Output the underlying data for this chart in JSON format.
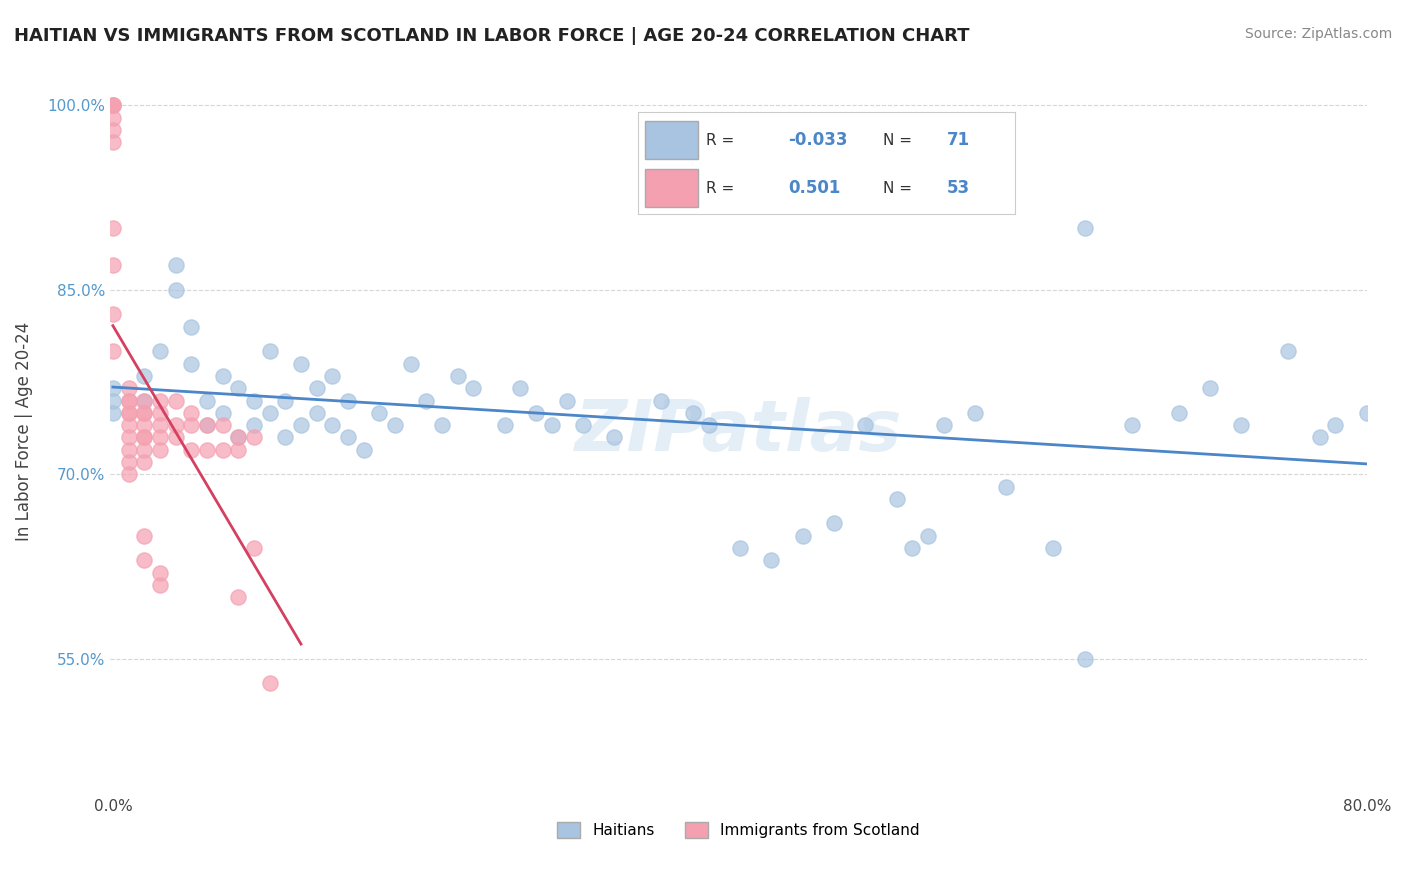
{
  "title": "HAITIAN VS IMMIGRANTS FROM SCOTLAND IN LABOR FORCE | AGE 20-24 CORRELATION CHART",
  "source": "Source: ZipAtlas.com",
  "xlabel": "",
  "ylabel": "In Labor Force | Age 20-24",
  "xlim": [
    -0.002,
    0.8
  ],
  "ylim": [
    0.44,
    1.03
  ],
  "xticks": [
    0.0,
    0.2,
    0.4,
    0.6,
    0.8
  ],
  "xticklabels": [
    "0.0%",
    "",
    "",
    "",
    "80.0%"
  ],
  "yticks": [
    0.55,
    0.7,
    0.85,
    1.0
  ],
  "yticklabels": [
    "55.0%",
    "70.0%",
    "85.0%",
    "100.0%"
  ],
  "legend_r1": "R = -0.033",
  "legend_n1": "N = 71",
  "legend_r2": "R =  0.501",
  "legend_n2": "N = 53",
  "blue_color": "#a8c4e0",
  "pink_color": "#f4a0b0",
  "blue_line_color": "#4a86c8",
  "pink_line_color": "#d44060",
  "watermark": "ZIPatlas",
  "blue_scatter_x": [
    0.0,
    0.0,
    0.0,
    0.02,
    0.02,
    0.03,
    0.04,
    0.04,
    0.05,
    0.05,
    0.06,
    0.06,
    0.07,
    0.07,
    0.08,
    0.08,
    0.09,
    0.09,
    0.1,
    0.1,
    0.11,
    0.11,
    0.12,
    0.12,
    0.13,
    0.13,
    0.14,
    0.14,
    0.15,
    0.15,
    0.16,
    0.17,
    0.18,
    0.19,
    0.2,
    0.21,
    0.22,
    0.23,
    0.25,
    0.26,
    0.27,
    0.28,
    0.29,
    0.3,
    0.32,
    0.35,
    0.37,
    0.38,
    0.4,
    0.42,
    0.44,
    0.46,
    0.48,
    0.5,
    0.51,
    0.52,
    0.53,
    0.55,
    0.57,
    0.6,
    0.62,
    0.65,
    0.68,
    0.7,
    0.72,
    0.75,
    0.77,
    0.78,
    0.8,
    0.62,
    0.4
  ],
  "blue_scatter_y": [
    0.75,
    0.76,
    0.77,
    0.78,
    0.76,
    0.8,
    0.85,
    0.87,
    0.82,
    0.79,
    0.76,
    0.74,
    0.78,
    0.75,
    0.73,
    0.77,
    0.76,
    0.74,
    0.8,
    0.75,
    0.76,
    0.73,
    0.79,
    0.74,
    0.77,
    0.75,
    0.74,
    0.78,
    0.73,
    0.76,
    0.72,
    0.75,
    0.74,
    0.79,
    0.76,
    0.74,
    0.78,
    0.77,
    0.74,
    0.77,
    0.75,
    0.74,
    0.76,
    0.74,
    0.73,
    0.76,
    0.75,
    0.74,
    0.64,
    0.63,
    0.65,
    0.66,
    0.74,
    0.68,
    0.64,
    0.65,
    0.74,
    0.75,
    0.69,
    0.64,
    0.55,
    0.74,
    0.75,
    0.77,
    0.74,
    0.8,
    0.73,
    0.74,
    0.75,
    0.9,
    0.95
  ],
  "pink_scatter_x": [
    0.0,
    0.0,
    0.0,
    0.0,
    0.0,
    0.0,
    0.0,
    0.0,
    0.0,
    0.0,
    0.01,
    0.01,
    0.01,
    0.01,
    0.01,
    0.01,
    0.01,
    0.01,
    0.01,
    0.01,
    0.02,
    0.02,
    0.02,
    0.02,
    0.02,
    0.02,
    0.02,
    0.02,
    0.02,
    0.02,
    0.03,
    0.03,
    0.03,
    0.03,
    0.03,
    0.03,
    0.03,
    0.04,
    0.04,
    0.04,
    0.05,
    0.05,
    0.05,
    0.06,
    0.06,
    0.07,
    0.07,
    0.08,
    0.08,
    0.08,
    0.09,
    0.09,
    0.1
  ],
  "pink_scatter_y": [
    1.0,
    1.0,
    1.0,
    0.99,
    0.98,
    0.97,
    0.9,
    0.87,
    0.83,
    0.8,
    0.77,
    0.76,
    0.76,
    0.75,
    0.75,
    0.74,
    0.73,
    0.72,
    0.71,
    0.7,
    0.76,
    0.75,
    0.75,
    0.74,
    0.73,
    0.73,
    0.72,
    0.71,
    0.65,
    0.63,
    0.76,
    0.75,
    0.74,
    0.73,
    0.72,
    0.62,
    0.61,
    0.76,
    0.74,
    0.73,
    0.75,
    0.74,
    0.72,
    0.74,
    0.72,
    0.74,
    0.72,
    0.73,
    0.72,
    0.6,
    0.73,
    0.64,
    0.53
  ]
}
